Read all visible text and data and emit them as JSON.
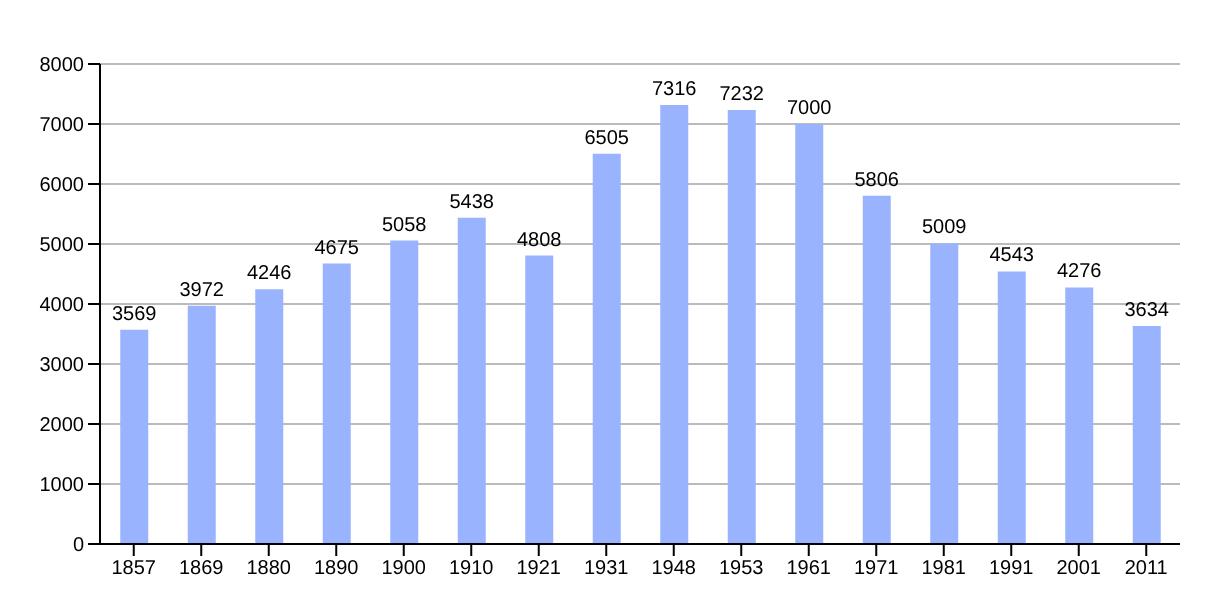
{
  "chart_data": {
    "type": "bar",
    "categories": [
      "1857",
      "1869",
      "1880",
      "1890",
      "1900",
      "1910",
      "1921",
      "1931",
      "1948",
      "1953",
      "1961",
      "1971",
      "1981",
      "1991",
      "2001",
      "2011"
    ],
    "values": [
      3569,
      3972,
      4246,
      4675,
      5058,
      5438,
      4808,
      6505,
      7316,
      7232,
      7000,
      5806,
      5009,
      4543,
      4276,
      3634
    ],
    "color": "#99b3ff",
    "ylim": [
      0,
      8000
    ],
    "yticks": [
      0,
      1000,
      2000,
      3000,
      4000,
      5000,
      6000,
      7000,
      8000
    ],
    "grid": "y",
    "data_labels": true
  }
}
